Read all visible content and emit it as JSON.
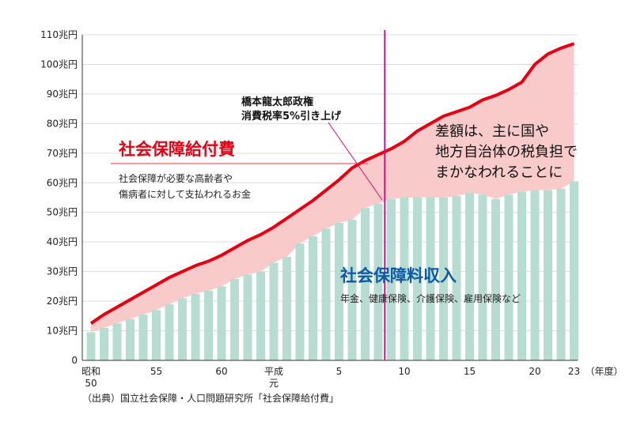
{
  "chart_data": {
    "type": "bar+line",
    "y_axis": {
      "min": 0,
      "max": 110,
      "step": 10,
      "tick_labels": [
        "0",
        "10兆円",
        "20兆円",
        "30兆円",
        "40兆円",
        "50兆円",
        "60兆円",
        "70兆円",
        "80兆円",
        "90兆円",
        "100兆円",
        "110兆円"
      ]
    },
    "x_axis": {
      "start_index": 0,
      "end_index": 36,
      "tick_labels": [
        {
          "index": 0,
          "lines": [
            "昭和",
            "50"
          ]
        },
        {
          "index": 5,
          "lines": [
            "55"
          ]
        },
        {
          "index": 10,
          "lines": [
            "60"
          ]
        },
        {
          "index": 14,
          "lines": [
            "平成",
            "元"
          ]
        },
        {
          "index": 19,
          "lines": [
            "5"
          ]
        },
        {
          "index": 24,
          "lines": [
            "10"
          ]
        },
        {
          "index": 29,
          "lines": [
            "15"
          ]
        },
        {
          "index": 34,
          "lines": [
            "20"
          ]
        },
        {
          "index": 37,
          "lines": [
            "23"
          ]
        }
      ],
      "unit_label": "（年度）"
    },
    "series": [
      {
        "name": "社会保障料収入",
        "kind": "bar",
        "color": "#b7ddd2",
        "values": [
          9.5,
          11.0,
          12.5,
          14.0,
          15.5,
          17.0,
          19.0,
          21.0,
          22.5,
          23.5,
          25.0,
          27.5,
          29.0,
          30.0,
          33.0,
          35.0,
          39.5,
          42.0,
          44.5,
          46.5,
          47.5,
          51.5,
          53.0,
          54.5,
          55.0,
          55.0,
          55.0,
          55.0,
          55.5,
          56.5,
          56.0,
          54.5,
          56.0,
          57.0,
          57.5,
          57.5,
          58.0,
          60.5
        ]
      },
      {
        "name": "社会保障給付費",
        "kind": "line",
        "color": "#e60012",
        "values": [
          12.5,
          15.5,
          18.0,
          20.5,
          23.0,
          25.5,
          28.0,
          30.0,
          32.0,
          33.5,
          35.5,
          38.0,
          40.5,
          42.5,
          45.0,
          48.0,
          51.0,
          54.0,
          57.5,
          61.0,
          65.0,
          67.5,
          69.5,
          71.5,
          74.0,
          77.5,
          80.0,
          82.5,
          84.0,
          85.5,
          88.0,
          89.5,
          91.5,
          94.0,
          100.0,
          103.5,
          105.5,
          107.0
        ]
      }
    ],
    "gap_fill_color": "#f9caca",
    "event_line": {
      "index": 22.5,
      "color": "#e6007e"
    }
  },
  "labels": {
    "benefits_title": "社会保障給付費",
    "benefits_desc_1": "社会保障が必要な高齢者や",
    "benefits_desc_2": "傷病者に対して支払われるお金",
    "revenue_title": "社会保障料収入",
    "revenue_desc": "年金、健康保険、介護保険、雇用保険など",
    "event_line_1": "橋本龍太郎政権",
    "event_line_2": "消費税率5%引き上げ",
    "diff_line_1": "差額は、主に国や",
    "diff_line_2": "地方自治体の税負担で",
    "diff_line_3": "まかなわれることに",
    "source": "（出典）国立社会保障・人口問題研究所「社会保障給付費」"
  }
}
